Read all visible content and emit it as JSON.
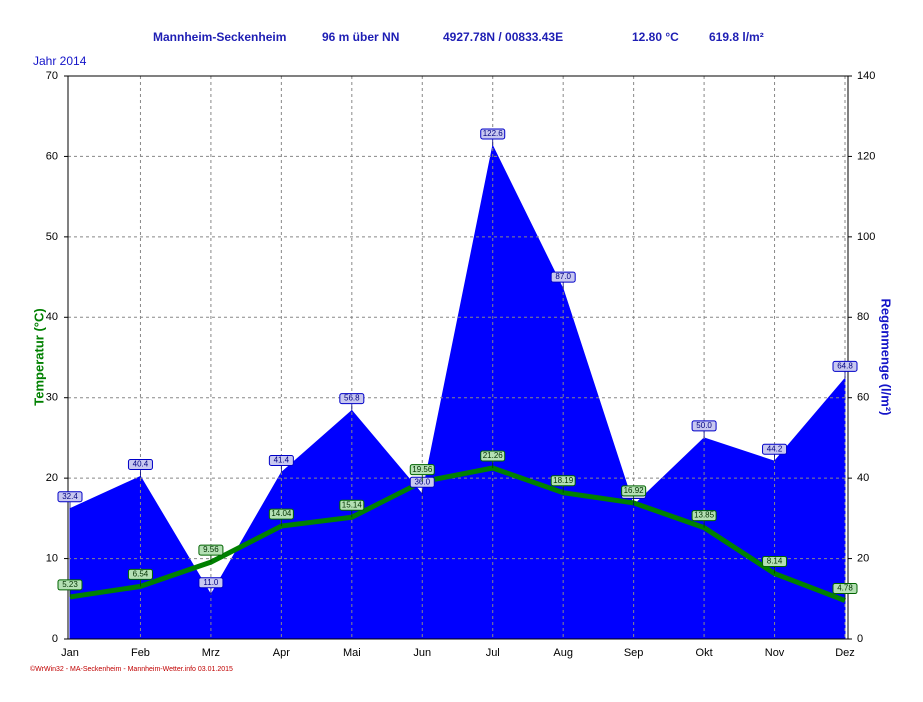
{
  "chart_data": {
    "type": "combo",
    "title": "Jahr  2014",
    "header": {
      "station": "Mannheim-Seckenheim",
      "altitude": "96 m über NN",
      "coordinates": "4927.78N / 00833.43E",
      "mean_temperature": "12.80 °C",
      "total_rain": "619.8 l/m²"
    },
    "y_label": "Temperatur  (°C)",
    "y2_label": "Regenmenge  (l/m²)",
    "footer": "©WrWin32 - MA-Seckenheim - Mannheim-Wetter.info  03.01.2015",
    "categories": [
      "Jan",
      "Feb",
      "Mrz",
      "Apr",
      "Mai",
      "Jun",
      "Jul",
      "Aug",
      "Sep",
      "Okt",
      "Nov",
      "Dez"
    ],
    "series": [
      {
        "name": "Regenmenge",
        "type": "area",
        "axis": "y2",
        "color": "#0000ff",
        "values": [
          32.4,
          40.4,
          11,
          41.4,
          56.8,
          36,
          122.6,
          87,
          33.2,
          50,
          44.2,
          64.8
        ],
        "value_labels": [
          "32.4",
          "40.4",
          "11.0",
          "41.4",
          "56.8",
          "36.0",
          "122.6",
          "87.0",
          "33.2",
          "50.0",
          "44.2",
          "64.8"
        ]
      },
      {
        "name": "Temperatur",
        "type": "line",
        "color": "#008000",
        "values": [
          5.23,
          6.54,
          9.56,
          14.04,
          15.14,
          19.56,
          21.26,
          18.19,
          16.92,
          13.85,
          8.14,
          4.78
        ]
      }
    ],
    "ylim": [
      0,
      70
    ],
    "yticks": [
      0,
      10,
      20,
      30,
      40,
      50,
      60,
      70
    ],
    "y2lim": [
      0,
      140
    ],
    "y2ticks": [
      0,
      20,
      40,
      60,
      80,
      100,
      120,
      140
    ],
    "grid": true
  }
}
